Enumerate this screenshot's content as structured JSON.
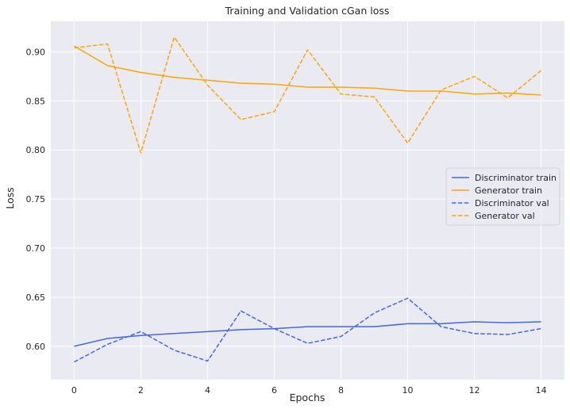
{
  "chart_data": {
    "type": "line",
    "title": "Training and Validation cGan loss",
    "xlabel": "Epochs",
    "ylabel": "Loss",
    "xlim": [
      -0.7,
      14.7
    ],
    "ylim": [
      0.566,
      0.931
    ],
    "xticks": [
      0,
      2,
      4,
      6,
      8,
      10,
      12,
      14
    ],
    "yticks": [
      0.6,
      0.65,
      0.7,
      0.75,
      0.8,
      0.85,
      0.9
    ],
    "ytick_labels": [
      "0.60",
      "0.65",
      "0.70",
      "0.75",
      "0.80",
      "0.85",
      "0.90"
    ],
    "grid": true,
    "legend_position": "center-right",
    "x": [
      0,
      1,
      2,
      3,
      4,
      5,
      6,
      7,
      8,
      9,
      10,
      11,
      12,
      13,
      14
    ],
    "series": [
      {
        "name": "Discriminator train",
        "color": "#4169e1",
        "dash": "solid",
        "values": [
          0.6,
          0.608,
          0.611,
          0.613,
          0.615,
          0.617,
          0.618,
          0.62,
          0.62,
          0.62,
          0.623,
          0.623,
          0.625,
          0.624,
          0.625
        ]
      },
      {
        "name": "Generator train",
        "color": "#ffa500",
        "dash": "solid",
        "values": [
          0.906,
          0.886,
          0.879,
          0.874,
          0.871,
          0.868,
          0.867,
          0.864,
          0.864,
          0.863,
          0.86,
          0.86,
          0.857,
          0.858,
          0.856
        ]
      },
      {
        "name": "Discriminator val",
        "color": "#4169e1",
        "dash": "dashed",
        "values": [
          0.584,
          0.602,
          0.615,
          0.596,
          0.585,
          0.636,
          0.618,
          0.603,
          0.61,
          0.634,
          0.649,
          0.62,
          0.613,
          0.612,
          0.618
        ]
      },
      {
        "name": "Generator val",
        "color": "#ffa500",
        "dash": "dashed",
        "values": [
          0.904,
          0.908,
          0.797,
          0.915,
          0.866,
          0.831,
          0.839,
          0.902,
          0.857,
          0.854,
          0.807,
          0.861,
          0.875,
          0.853,
          0.881
        ]
      }
    ]
  },
  "colors": {
    "plot_background": "#eaeaf2",
    "grid": "#ffffff"
  }
}
